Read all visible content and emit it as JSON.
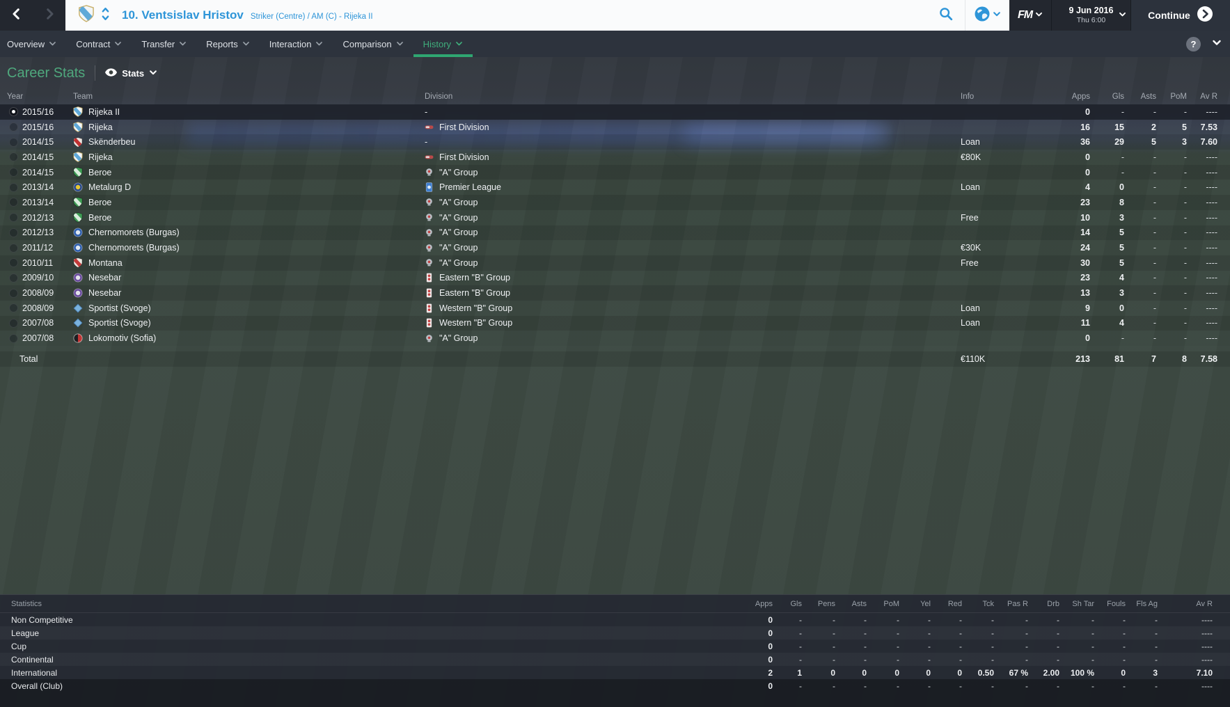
{
  "topbar": {
    "player_number_name": "10. Ventsislav Hristov",
    "player_position": "Striker (Centre) / AM (C) - Rijeka II",
    "fm_label": "FM",
    "date_line1": "9 Jun 2016",
    "date_line2": "Thu 6:00",
    "continue_label": "Continue"
  },
  "navbar": {
    "items": [
      {
        "label": "Overview",
        "active": false
      },
      {
        "label": "Contract",
        "active": false
      },
      {
        "label": "Transfer",
        "active": false
      },
      {
        "label": "Reports",
        "active": false
      },
      {
        "label": "Interaction",
        "active": false
      },
      {
        "label": "Comparison",
        "active": false
      },
      {
        "label": "History",
        "active": true
      }
    ],
    "help_label": "?"
  },
  "page": {
    "title": "Career Stats",
    "view_label": "Stats"
  },
  "career_table": {
    "headers": {
      "year": "Year",
      "team": "Team",
      "division": "Division",
      "info": "Info",
      "apps": "Apps",
      "gls": "Gls",
      "asts": "Asts",
      "pom": "PoM",
      "avr": "Av R"
    },
    "rows": [
      {
        "year": "2015/16",
        "team": "Rijeka II",
        "crest": "rijeka",
        "division": "-",
        "division_icon": "none",
        "info": "",
        "apps": "0",
        "gls": "-",
        "asts": "-",
        "pom": "-",
        "avr": "----",
        "selected": true
      },
      {
        "year": "2015/16",
        "team": "Rijeka",
        "crest": "rijeka",
        "division": "First Division",
        "division_icon": "first_division",
        "info": "",
        "apps": "16",
        "gls": "15",
        "asts": "2",
        "pom": "5",
        "avr": "7.53",
        "selected": false
      },
      {
        "year": "2014/15",
        "team": "Skënderbeu",
        "crest": "skenderbeu",
        "division": "-",
        "division_icon": "none",
        "info": "Loan",
        "apps": "36",
        "gls": "29",
        "asts": "5",
        "pom": "3",
        "avr": "7.60",
        "selected": false
      },
      {
        "year": "2014/15",
        "team": "Rijeka",
        "crest": "rijeka",
        "division": "First Division",
        "division_icon": "first_division",
        "info": "€80K",
        "apps": "0",
        "gls": "-",
        "asts": "-",
        "pom": "-",
        "avr": "----",
        "selected": false
      },
      {
        "year": "2014/15",
        "team": "Beroe",
        "crest": "beroe",
        "division": "\"A\" Group",
        "division_icon": "a_group",
        "info": "",
        "apps": "0",
        "gls": "-",
        "asts": "-",
        "pom": "-",
        "avr": "----",
        "selected": false
      },
      {
        "year": "2013/14",
        "team": "Metalurg D",
        "crest": "metalurg",
        "division": "Premier League",
        "division_icon": "premier_league",
        "info": "Loan",
        "apps": "4",
        "gls": "0",
        "asts": "-",
        "pom": "-",
        "avr": "----",
        "selected": false
      },
      {
        "year": "2013/14",
        "team": "Beroe",
        "crest": "beroe",
        "division": "\"A\" Group",
        "division_icon": "a_group",
        "info": "",
        "apps": "23",
        "gls": "8",
        "asts": "-",
        "pom": "-",
        "avr": "----",
        "selected": false
      },
      {
        "year": "2012/13",
        "team": "Beroe",
        "crest": "beroe",
        "division": "\"A\" Group",
        "division_icon": "a_group",
        "info": "Free",
        "apps": "10",
        "gls": "3",
        "asts": "-",
        "pom": "-",
        "avr": "----",
        "selected": false
      },
      {
        "year": "2012/13",
        "team": "Chernomorets (Burgas)",
        "crest": "chernomorets",
        "division": "\"A\" Group",
        "division_icon": "a_group",
        "info": "",
        "apps": "14",
        "gls": "5",
        "asts": "-",
        "pom": "-",
        "avr": "----",
        "selected": false
      },
      {
        "year": "2011/12",
        "team": "Chernomorets (Burgas)",
        "crest": "chernomorets",
        "division": "\"A\" Group",
        "division_icon": "a_group",
        "info": "€30K",
        "apps": "24",
        "gls": "5",
        "asts": "-",
        "pom": "-",
        "avr": "----",
        "selected": false
      },
      {
        "year": "2010/11",
        "team": "Montana",
        "crest": "montana",
        "division": "\"A\" Group",
        "division_icon": "a_group",
        "info": "Free",
        "apps": "30",
        "gls": "5",
        "asts": "-",
        "pom": "-",
        "avr": "----",
        "selected": false
      },
      {
        "year": "2009/10",
        "team": "Nesebar",
        "crest": "nesebar",
        "division": "Eastern \"B\" Group",
        "division_icon": "b_group",
        "info": "",
        "apps": "23",
        "gls": "4",
        "asts": "-",
        "pom": "-",
        "avr": "----",
        "selected": false
      },
      {
        "year": "2008/09",
        "team": "Nesebar",
        "crest": "nesebar",
        "division": "Eastern \"B\" Group",
        "division_icon": "b_group",
        "info": "",
        "apps": "13",
        "gls": "3",
        "asts": "-",
        "pom": "-",
        "avr": "----",
        "selected": false
      },
      {
        "year": "2008/09",
        "team": "Sportist (Svoge)",
        "crest": "sportist",
        "division": "Western \"B\" Group",
        "division_icon": "b_group",
        "info": "Loan",
        "apps": "9",
        "gls": "0",
        "asts": "-",
        "pom": "-",
        "avr": "----",
        "selected": false
      },
      {
        "year": "2007/08",
        "team": "Sportist (Svoge)",
        "crest": "sportist",
        "division": "Western \"B\" Group",
        "division_icon": "b_group",
        "info": "Loan",
        "apps": "11",
        "gls": "4",
        "asts": "-",
        "pom": "-",
        "avr": "----",
        "selected": false
      },
      {
        "year": "2007/08",
        "team": "Lokomotiv (Sofia)",
        "crest": "lokomotiv",
        "division": "\"A\" Group",
        "division_icon": "a_group",
        "info": "",
        "apps": "0",
        "gls": "-",
        "asts": "-",
        "pom": "-",
        "avr": "----",
        "selected": false
      }
    ],
    "total": {
      "label": "Total",
      "info": "€110K",
      "apps": "213",
      "gls": "81",
      "asts": "7",
      "pom": "8",
      "avr": "7.58"
    }
  },
  "bottom_table": {
    "label_header": "Statistics",
    "headers": [
      "Apps",
      "Gls",
      "Pens",
      "Asts",
      "PoM",
      "Yel",
      "Red",
      "Tck",
      "Pas R",
      "Drb",
      "Sh Tar",
      "Fouls",
      "Fls Ag",
      "Av R"
    ],
    "rows": [
      {
        "label": "Non Competitive",
        "values": [
          "0",
          "-",
          "-",
          "-",
          "-",
          "-",
          "-",
          "-",
          "-",
          "-",
          "-",
          "-",
          "-",
          "----"
        ]
      },
      {
        "label": "League",
        "values": [
          "0",
          "-",
          "-",
          "-",
          "-",
          "-",
          "-",
          "-",
          "-",
          "-",
          "-",
          "-",
          "-",
          "----"
        ]
      },
      {
        "label": "Cup",
        "values": [
          "0",
          "-",
          "-",
          "-",
          "-",
          "-",
          "-",
          "-",
          "-",
          "-",
          "-",
          "-",
          "-",
          "----"
        ]
      },
      {
        "label": "Continental",
        "values": [
          "0",
          "-",
          "-",
          "-",
          "-",
          "-",
          "-",
          "-",
          "-",
          "-",
          "-",
          "-",
          "-",
          "----"
        ]
      },
      {
        "label": "International",
        "values": [
          "2",
          "1",
          "0",
          "0",
          "0",
          "0",
          "0",
          "0.50",
          "67 %",
          "2.00",
          "100 %",
          "0",
          "3",
          "7.10"
        ]
      },
      {
        "label": "Overall (Club)",
        "values": [
          "0",
          "-",
          "-",
          "-",
          "-",
          "-",
          "-",
          "-",
          "-",
          "-",
          "-",
          "-",
          "-",
          "----"
        ]
      }
    ]
  },
  "crests": {
    "rijeka": {
      "shape": "shield",
      "colors": [
        "#f2f6f8",
        "#5fa9d8"
      ],
      "stroke": "#c9b06a"
    },
    "skenderbeu": {
      "shape": "shield",
      "colors": [
        "#e9e4e0",
        "#c03030"
      ],
      "stroke": "rgba(0,0,0,.4)"
    },
    "beroe": {
      "shape": "shield",
      "colors": [
        "#3f9e55",
        "#d9ecdc"
      ],
      "stroke": "rgba(0,0,0,.4)"
    },
    "metalurg": {
      "shape": "circle",
      "colors": [
        "#2a4a8c",
        "#e8c832"
      ]
    },
    "chernomorets": {
      "shape": "circle",
      "colors": [
        "#2f5fae",
        "#dfe8f2"
      ]
    },
    "montana": {
      "shape": "shield",
      "colors": [
        "#ece8e2",
        "#c23a3a"
      ],
      "stroke": "rgba(0,0,0,.4)"
    },
    "nesebar": {
      "shape": "circle",
      "colors": [
        "#6a4b9e",
        "#e2e2ea"
      ]
    },
    "sportist": {
      "shape": "diamond",
      "colors": [
        "#7ab2dd",
        "#4f86bb"
      ]
    },
    "lokomotiv": {
      "shape": "circle_halves",
      "colors": [
        "#1e1e22",
        "#c03434"
      ]
    }
  },
  "division_icons": {
    "first_division": {
      "shape": "oval",
      "colors": [
        "#b94a4a",
        "#e8eaec"
      ]
    },
    "a_group": {
      "shape": "cup",
      "colors": [
        "#b9bec4",
        "#c04040"
      ]
    },
    "premier_league": {
      "shape": "square",
      "colors": [
        "#3f7fd0",
        "#dcebf8"
      ]
    },
    "b_group": {
      "shape": "tall",
      "colors": [
        "#c54040",
        "#f0e8e8"
      ]
    }
  },
  "icons": {
    "back": "chevron-left",
    "forward": "chevron-right",
    "player_switch": "up-down-chevrons",
    "search": "magnifier",
    "world": "globe",
    "fm_menu": "chevron-down",
    "date_picker": "chevron-down",
    "continue_arrow": "chevron-right-circle",
    "help": "question-circle",
    "nav_collapse": "chevron-down",
    "view_eye": "eye",
    "view_chevron": "chevron-down"
  },
  "colors": {
    "accent_blue": "#2e95d8",
    "accent_green": "#3fae7c",
    "topbar_bg": "#23272f",
    "navbar_bg": "#2d333d",
    "white_section": "#fafbfc",
    "selected_row": "#1e222b",
    "bottom_panel_bg": "#252a33"
  }
}
